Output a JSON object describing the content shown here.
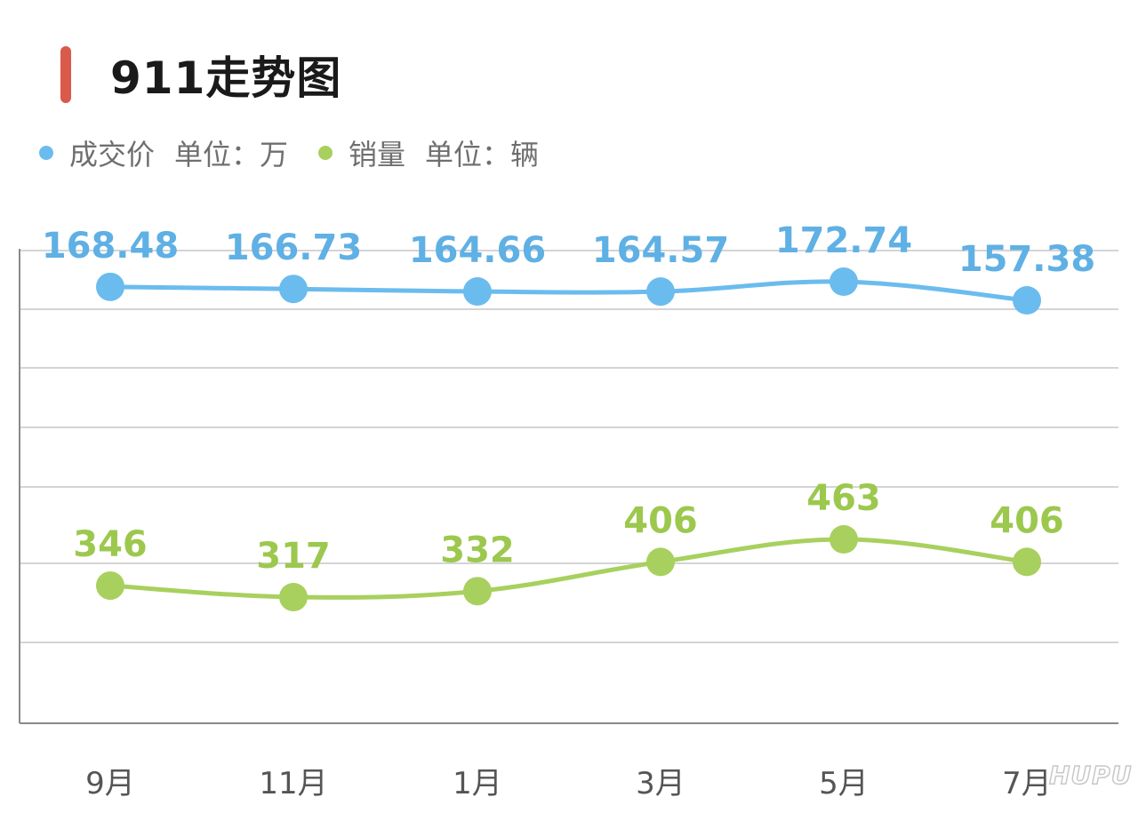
{
  "title": "911走势图",
  "legend": [
    {
      "name": "成交价",
      "unit": "单位：万",
      "color": "#6bbcee"
    },
    {
      "name": "销量",
      "unit": "单位：辆",
      "color": "#a8d05e"
    }
  ],
  "colors": {
    "accent": "#d9594a",
    "price": "#6bbcee",
    "price_label": "#5fb0e4",
    "sales": "#a8d05e",
    "sales_label": "#9cc84e",
    "grid": "#d4d4d4",
    "axis": "#8a8a8a"
  },
  "watermark": "HUPU",
  "chart_data": {
    "type": "line",
    "categories": [
      "9月",
      "11月",
      "1月",
      "3月",
      "5月",
      "7月"
    ],
    "series": [
      {
        "name": "成交价",
        "unit": "万",
        "values": [
          168.48,
          166.73,
          164.66,
          164.57,
          172.74,
          157.38
        ],
        "labels": [
          "168.48",
          "166.73",
          "164.66",
          "164.57",
          "172.74",
          "157.38"
        ]
      },
      {
        "name": "销量",
        "unit": "辆",
        "values": [
          346,
          317,
          332,
          406,
          463,
          406
        ],
        "labels": [
          "346",
          "317",
          "332",
          "406",
          "463",
          "406"
        ]
      }
    ],
    "grid": true,
    "legend_position": "top-left"
  }
}
